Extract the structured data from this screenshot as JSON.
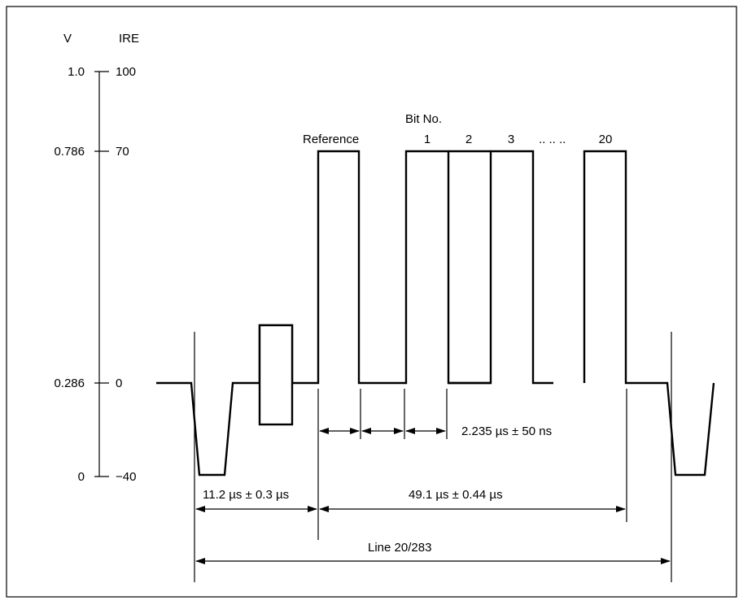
{
  "axis": {
    "v_header": "V",
    "ire_header": "IRE",
    "levels": [
      {
        "v": "1.0",
        "ire": "100"
      },
      {
        "v": "0.786",
        "ire": "70"
      },
      {
        "v": "0.286",
        "ire": "0"
      },
      {
        "v": "0",
        "ire": "−40"
      }
    ]
  },
  "labels": {
    "bit_no": "Bit No.",
    "reference": "Reference",
    "bits": [
      "1",
      "2",
      "3",
      ".. .. ..",
      "20"
    ]
  },
  "dimensions": {
    "bit_period": "2.235 µs ± 50 ns",
    "start_time": "11.2 µs ± 0.3 µs",
    "data_span": "49.1 µs ± 0.44 µs",
    "line": "Line 20/283"
  }
}
